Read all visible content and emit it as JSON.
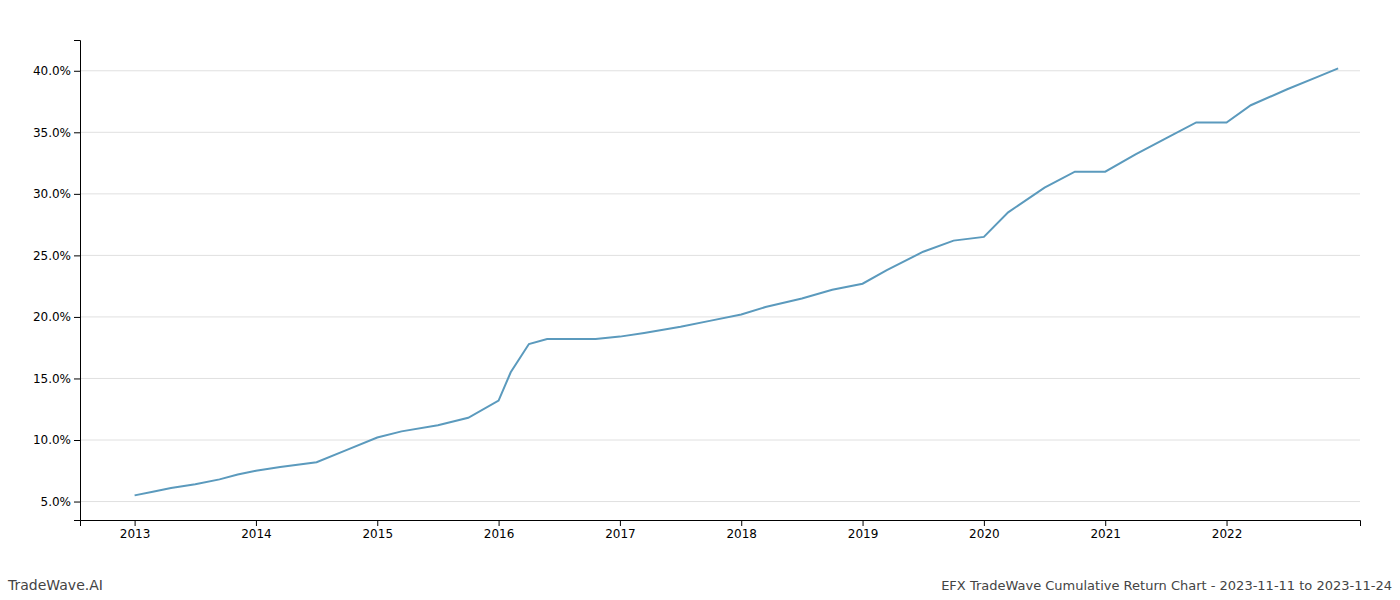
{
  "chart_data": {
    "type": "line",
    "title": "EFX TradeWave Cumulative Return Chart - 2023-11-11 to 2023-11-24",
    "annotations": [
      "TradeWave.AI"
    ],
    "color": "#5b9abd",
    "grid": true,
    "x": [
      2013.0,
      2013.15,
      2013.3,
      2013.5,
      2013.7,
      2013.85,
      2014.0,
      2014.2,
      2014.5,
      2014.75,
      2015.0,
      2015.2,
      2015.5,
      2015.75,
      2016.0,
      2016.1,
      2016.25,
      2016.4,
      2016.6,
      2016.8,
      2017.0,
      2017.2,
      2017.5,
      2017.75,
      2018.0,
      2018.2,
      2018.5,
      2018.75,
      2019.0,
      2019.2,
      2019.5,
      2019.75,
      2020.0,
      2020.2,
      2020.5,
      2020.75,
      2021.0,
      2021.25,
      2021.5,
      2021.75,
      2022.0,
      2022.2,
      2022.5,
      2022.75,
      2022.92
    ],
    "values": [
      5.5,
      5.8,
      6.1,
      6.4,
      6.8,
      7.2,
      7.5,
      7.8,
      8.2,
      9.2,
      10.2,
      10.7,
      11.2,
      11.8,
      13.2,
      15.5,
      17.8,
      18.2,
      18.2,
      18.2,
      18.4,
      18.7,
      19.2,
      19.7,
      20.2,
      20.8,
      21.5,
      22.2,
      22.7,
      23.8,
      25.3,
      26.2,
      26.5,
      28.5,
      30.5,
      31.8,
      31.8,
      33.2,
      34.5,
      35.8,
      35.8,
      37.2,
      38.5,
      39.5,
      40.2
    ],
    "xlim": [
      2012.55,
      2023.1
    ],
    "xticks": [
      2013,
      2014,
      2015,
      2016,
      2017,
      2018,
      2019,
      2020,
      2021,
      2022
    ],
    "ylim": [
      3.5,
      42.5
    ],
    "yticks": [
      {
        "value": 5.0,
        "label": "5.0%"
      },
      {
        "value": 10.0,
        "label": "10.0%"
      },
      {
        "value": 15.0,
        "label": "15.0%"
      },
      {
        "value": 20.0,
        "label": "20.0%"
      },
      {
        "value": 25.0,
        "label": "25.0%"
      },
      {
        "value": 30.0,
        "label": "30.0%"
      },
      {
        "value": 35.0,
        "label": "35.0%"
      },
      {
        "value": 40.0,
        "label": "40.0%"
      }
    ]
  }
}
